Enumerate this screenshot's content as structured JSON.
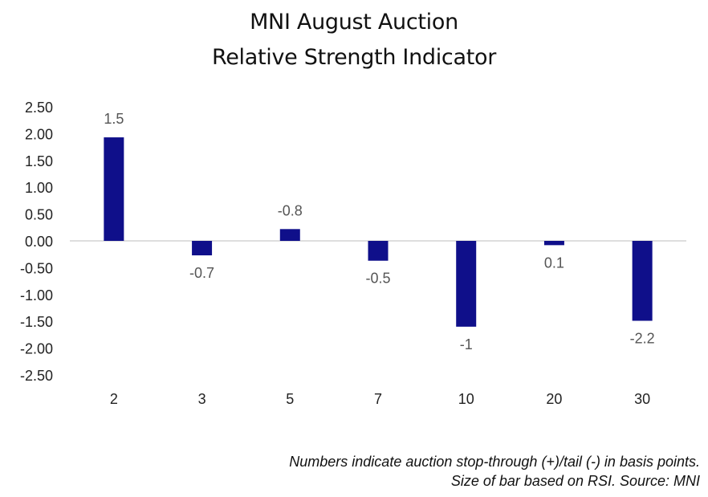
{
  "chart_data": {
    "type": "bar",
    "title": "MNI August Auction",
    "subtitle": "Relative Strength Indicator",
    "xlabel": "",
    "ylabel": "",
    "categories": [
      "2",
      "3",
      "5",
      "7",
      "10",
      "20",
      "30"
    ],
    "values": [
      1.93,
      -0.27,
      0.22,
      -0.37,
      -1.6,
      -0.08,
      -1.49
    ],
    "data_labels": [
      "1.5",
      "-0.7",
      "-0.8",
      "-0.5",
      "-1",
      "0.1",
      "-2.2"
    ],
    "ylim": [
      -2.5,
      2.5
    ],
    "yticks": [
      2.5,
      2.0,
      1.5,
      1.0,
      0.5,
      0.0,
      -0.5,
      -1.0,
      -1.5,
      -2.0,
      -2.5
    ],
    "ytick_labels": [
      "2.50",
      "2.00",
      "1.50",
      "1.00",
      "0.50",
      "0.00",
      "-0.50",
      "-1.00",
      "-1.50",
      "-2.00",
      "-2.50"
    ],
    "grid": false,
    "legend": "none",
    "bar_color": "#0f0f8a",
    "annotations": [
      "Numbers indicate auction stop-through (+)/tail (-) in basis points.",
      "Size of bar based on RSI. Source: MNI"
    ]
  }
}
